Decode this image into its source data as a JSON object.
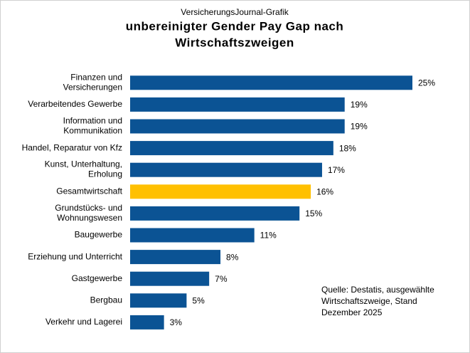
{
  "chart_data": {
    "type": "bar",
    "orientation": "horizontal",
    "subtitle": "VersicherungsJournal-Grafik",
    "title": "unbereinigter Gender Pay Gap nach\nWirtschaftszweigen",
    "categories": [
      "Finanzen und\nVersicherungen",
      "Verarbeitendes Gewerbe",
      "Information und\nKommunikation",
      "Handel, Reparatur von Kfz",
      "Kunst, Unterhaltung,\nErholung",
      "Gesamtwirtschaft",
      "Grundstücks- und\nWohnungswesen",
      "Baugewerbe",
      "Erziehung und Unterricht",
      "Gastgewerbe",
      "Bergbau",
      "Verkehr und Lagerei"
    ],
    "values": [
      25,
      19,
      19,
      18,
      17,
      16,
      15,
      11,
      8,
      7,
      5,
      3
    ],
    "value_labels": [
      "25%",
      "19%",
      "19%",
      "18%",
      "17%",
      "16%",
      "15%",
      "11%",
      "8%",
      "7%",
      "5%",
      "3%"
    ],
    "colors": [
      "#0b5394",
      "#0b5394",
      "#0b5394",
      "#0b5394",
      "#0b5394",
      "#ffc000",
      "#0b5394",
      "#0b5394",
      "#0b5394",
      "#0b5394",
      "#0b5394",
      "#0b5394"
    ],
    "xlim": [
      0,
      25
    ],
    "source": "Quelle: Destatis, ausgewählte\nWirtschaftszweige, Stand\nDezember 2025"
  }
}
